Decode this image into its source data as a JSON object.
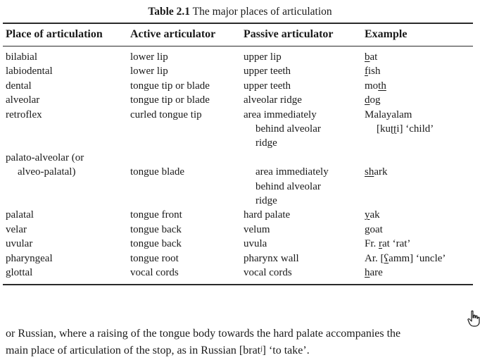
{
  "caption": {
    "label": "Table 2.1",
    "title": "The major places of articulation"
  },
  "headers": [
    "Place of articulation",
    "Active articulator",
    "Passive articulator",
    "Example"
  ],
  "rows": [
    {
      "place": [
        "bilabial"
      ],
      "active": [
        "lower lip"
      ],
      "passive": [
        "upper lip"
      ],
      "example": [
        [
          {
            "t": "b",
            "u": true
          },
          {
            "t": "at"
          }
        ]
      ]
    },
    {
      "place": [
        "labiodental"
      ],
      "active": [
        "lower lip"
      ],
      "passive": [
        "upper teeth"
      ],
      "example": [
        [
          {
            "t": "f",
            "u": true
          },
          {
            "t": "ish"
          }
        ]
      ]
    },
    {
      "place": [
        "dental"
      ],
      "active": [
        "tongue tip or blade"
      ],
      "passive": [
        "upper teeth"
      ],
      "example": [
        [
          {
            "t": "mo"
          },
          {
            "t": "th",
            "u": true
          }
        ]
      ]
    },
    {
      "place": [
        "alveolar"
      ],
      "active": [
        "tongue tip or blade"
      ],
      "passive": [
        "alveolar ridge"
      ],
      "example": [
        [
          {
            "t": "d",
            "u": true
          },
          {
            "t": "og"
          }
        ]
      ]
    },
    {
      "place": [
        "retroflex"
      ],
      "active": [
        "curled tongue tip"
      ],
      "passive": [
        "area immediately",
        "behind alveolar",
        "ridge"
      ],
      "example": [
        [
          {
            "t": "Malayalam"
          }
        ],
        [
          {
            "t": "[ku"
          },
          {
            "t": "ʈʈ",
            "u": true
          },
          {
            "t": "i] ‘child’"
          }
        ]
      ]
    },
    {
      "place": [
        "palato-alveolar (or",
        "alveo-palatal)"
      ],
      "active": [
        "",
        "tongue blade"
      ],
      "passive": [
        "",
        "area immediately",
        "behind alveolar",
        "ridge"
      ],
      "example": [
        [],
        [
          {
            "t": "sh",
            "u": true
          },
          {
            "t": "ark"
          }
        ]
      ]
    },
    {
      "place": [
        "palatal"
      ],
      "active": [
        "tongue front"
      ],
      "passive": [
        "hard palate"
      ],
      "example": [
        [
          {
            "t": "y",
            "u": true
          },
          {
            "t": "ak"
          }
        ]
      ]
    },
    {
      "place": [
        "velar"
      ],
      "active": [
        "tongue back"
      ],
      "passive": [
        "velum"
      ],
      "example": [
        [
          {
            "t": "g",
            "u": true
          },
          {
            "t": "oat"
          }
        ]
      ]
    },
    {
      "place": [
        "uvular"
      ],
      "active": [
        "tongue back"
      ],
      "passive": [
        "uvula"
      ],
      "example": [
        [
          {
            "t": "Fr. "
          },
          {
            "t": "r",
            "u": true
          },
          {
            "t": "at ‘rat’"
          }
        ]
      ]
    },
    {
      "place": [
        "pharyngeal"
      ],
      "active": [
        "tongue root"
      ],
      "passive": [
        "pharynx wall"
      ],
      "example": [
        [
          {
            "t": "Ar. ["
          },
          {
            "t": "ʕ",
            "u": true
          },
          {
            "t": "amm] ‘uncle’"
          }
        ]
      ]
    },
    {
      "place": [
        "glottal"
      ],
      "active": [
        "vocal cords"
      ],
      "passive": [
        "vocal cords"
      ],
      "example": [
        [
          {
            "t": "h",
            "u": true
          },
          {
            "t": "are"
          }
        ]
      ]
    }
  ],
  "paragraph": [
    "or Russian, where a raising of the tongue body towards the hard palate accompanies the",
    "main place of articulation of the stop, as in Russian [bratʲ] ‘to take’."
  ],
  "cursor_icon": "hand-pointer-icon"
}
